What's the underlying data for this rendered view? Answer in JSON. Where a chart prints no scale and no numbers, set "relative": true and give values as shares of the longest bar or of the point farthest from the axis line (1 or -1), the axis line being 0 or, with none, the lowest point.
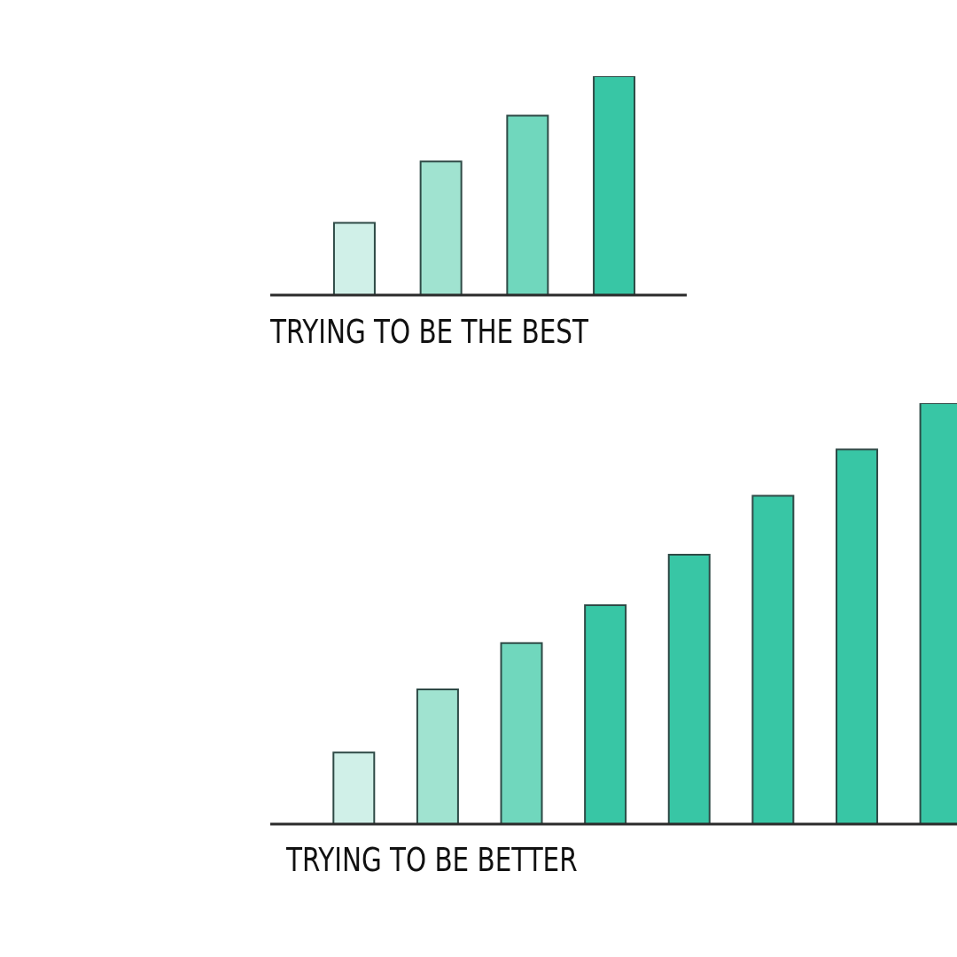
{
  "chart_data": [
    {
      "type": "bar",
      "xlabel": "TRYING TO BE THE BEST",
      "categories": [
        null,
        null,
        null,
        null
      ],
      "values": [
        0.33,
        0.61,
        0.82,
        1
      ],
      "colors": [
        "#d0f0e8",
        "#a0e3d0",
        "#70d7bd",
        "#38c6a5"
      ],
      "relative": true
    },
    {
      "type": "bar",
      "xlabel": "TRYING TO BE BETTER",
      "categories": [
        null,
        null,
        null,
        null,
        null,
        null,
        null,
        null
      ],
      "values": [
        0.17,
        0.32,
        0.43,
        0.52,
        0.64,
        0.78,
        0.89,
        1
      ],
      "colors": [
        "#d0f0e8",
        "#a0e3d0",
        "#70d7bd",
        "#38c6a5",
        "#38c6a5",
        "#38c6a5",
        "#38c6a5",
        "#38c6a5"
      ],
      "relative": true
    }
  ]
}
